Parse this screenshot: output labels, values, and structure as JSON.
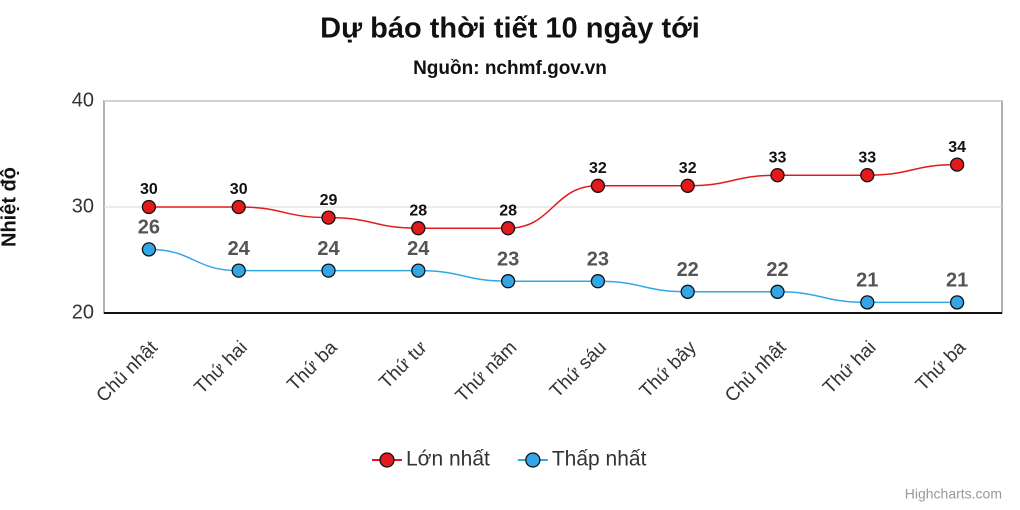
{
  "chart_data": {
    "type": "line",
    "title": "Dự báo thời tiết 10 ngày tới",
    "subtitle": "Nguồn: nchmf.gov.vn",
    "y_label": "Nhiệt độ",
    "credits": "Highcharts.com",
    "categories": [
      "Chủ nhật",
      "Thứ hai",
      "Thứ ba",
      "Thứ tư",
      "Thứ năm",
      "Thứ sáu",
      "Thứ bảy",
      "Chủ nhật",
      "Thứ hai",
      "Thứ ba"
    ],
    "series": [
      {
        "name": "Lớn nhất",
        "color": "#e31a1c",
        "values": [
          30,
          30,
          29,
          28,
          28,
          32,
          32,
          33,
          33,
          34
        ]
      },
      {
        "name": "Thấp nhất",
        "color": "#33a6e8",
        "values": [
          26,
          24,
          24,
          24,
          23,
          23,
          22,
          22,
          21,
          21
        ]
      }
    ],
    "ylim": [
      20,
      40
    ],
    "yticks": [
      20,
      30,
      40
    ],
    "grid": true,
    "smooth": true,
    "legend": "bottom"
  }
}
